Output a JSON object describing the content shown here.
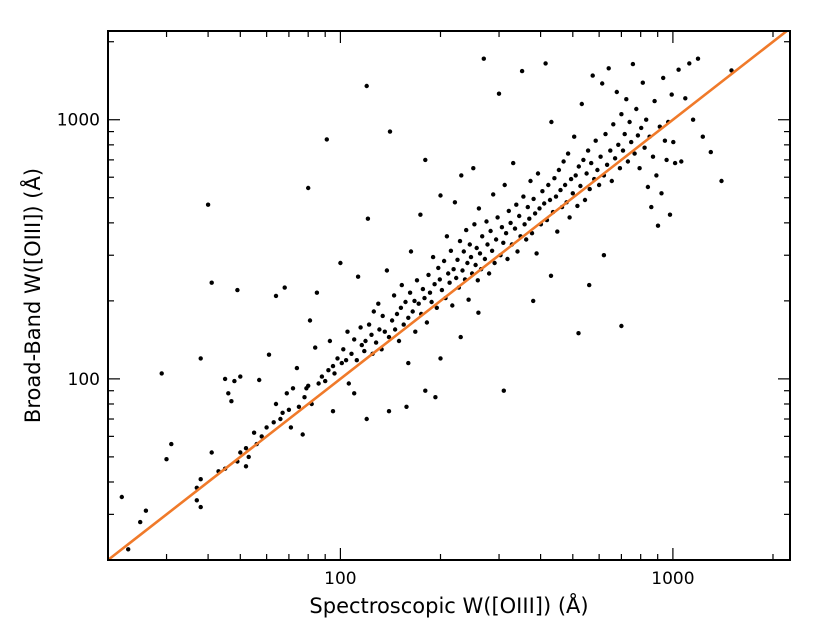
{
  "chart_data": {
    "type": "scatter",
    "title": "",
    "xlabel": "Spectroscopic W([OIII]) (Å)",
    "ylabel": "Broad-Band W([OIII]) (Å)",
    "xscale": "log",
    "yscale": "log",
    "xlim": [
      20,
      2250
    ],
    "ylim": [
      20,
      2200
    ],
    "x_ticks": [
      {
        "value": 100,
        "label": "100"
      },
      {
        "value": 1000,
        "label": "1000"
      }
    ],
    "y_ticks": [
      {
        "value": 100,
        "label": "100"
      },
      {
        "value": 1000,
        "label": "1000"
      }
    ],
    "grid": false,
    "marker_color": "#000000",
    "line_color": "#f07a2a",
    "reference_line": {
      "type": "one-to-one",
      "points": [
        [
          20,
          20
        ],
        [
          2250,
          2250
        ]
      ]
    },
    "points": [
      [
        22,
        35
      ],
      [
        23,
        22
      ],
      [
        25,
        28
      ],
      [
        26,
        31
      ],
      [
        29,
        105
      ],
      [
        30,
        49
      ],
      [
        31,
        56
      ],
      [
        37,
        38
      ],
      [
        37,
        34
      ],
      [
        38,
        32
      ],
      [
        38,
        120
      ],
      [
        38,
        41
      ],
      [
        40,
        470
      ],
      [
        41,
        52
      ],
      [
        41,
        235
      ],
      [
        43,
        44
      ],
      [
        45,
        45
      ],
      [
        45,
        100
      ],
      [
        46,
        88
      ],
      [
        47,
        82
      ],
      [
        48,
        98
      ],
      [
        49,
        48
      ],
      [
        49,
        220
      ],
      [
        50,
        52
      ],
      [
        50,
        102
      ],
      [
        52,
        54
      ],
      [
        52,
        46
      ],
      [
        53,
        50
      ],
      [
        55,
        62
      ],
      [
        56,
        56
      ],
      [
        57,
        99
      ],
      [
        58,
        60
      ],
      [
        60,
        65
      ],
      [
        61,
        124
      ],
      [
        63,
        68
      ],
      [
        64,
        209
      ],
      [
        64,
        80
      ],
      [
        66,
        70
      ],
      [
        67,
        74
      ],
      [
        68,
        225
      ],
      [
        69,
        88
      ],
      [
        70,
        76
      ],
      [
        71,
        65
      ],
      [
        72,
        92
      ],
      [
        74,
        110
      ],
      [
        75,
        78
      ],
      [
        77,
        61
      ],
      [
        78,
        85
      ],
      [
        79,
        92
      ],
      [
        80,
        94
      ],
      [
        80,
        545
      ],
      [
        81,
        168
      ],
      [
        82,
        80
      ],
      [
        84,
        132
      ],
      [
        85,
        215
      ],
      [
        86,
        96
      ],
      [
        88,
        102
      ],
      [
        90,
        98
      ],
      [
        91,
        840
      ],
      [
        92,
        108
      ],
      [
        93,
        140
      ],
      [
        95,
        112
      ],
      [
        96,
        105
      ],
      [
        98,
        120
      ],
      [
        100,
        280
      ],
      [
        101,
        115
      ],
      [
        102,
        130
      ],
      [
        104,
        118
      ],
      [
        105,
        152
      ],
      [
        106,
        96
      ],
      [
        108,
        125
      ],
      [
        110,
        142
      ],
      [
        112,
        118
      ],
      [
        113,
        248
      ],
      [
        115,
        158
      ],
      [
        116,
        135
      ],
      [
        118,
        128
      ],
      [
        119,
        140
      ],
      [
        120,
        1350
      ],
      [
        121,
        415
      ],
      [
        122,
        162
      ],
      [
        124,
        148
      ],
      [
        125,
        125
      ],
      [
        126,
        182
      ],
      [
        128,
        138
      ],
      [
        130,
        195
      ],
      [
        131,
        155
      ],
      [
        133,
        130
      ],
      [
        134,
        175
      ],
      [
        136,
        152
      ],
      [
        138,
        262
      ],
      [
        140,
        145
      ],
      [
        141,
        900
      ],
      [
        143,
        168
      ],
      [
        145,
        210
      ],
      [
        146,
        155
      ],
      [
        148,
        178
      ],
      [
        150,
        140
      ],
      [
        152,
        188
      ],
      [
        153,
        230
      ],
      [
        155,
        162
      ],
      [
        157,
        198
      ],
      [
        158,
        78
      ],
      [
        160,
        172
      ],
      [
        162,
        215
      ],
      [
        163,
        310
      ],
      [
        165,
        182
      ],
      [
        167,
        200
      ],
      [
        168,
        152
      ],
      [
        170,
        240
      ],
      [
        172,
        195
      ],
      [
        174,
        430
      ],
      [
        175,
        178
      ],
      [
        177,
        222
      ],
      [
        179,
        205
      ],
      [
        180,
        700
      ],
      [
        182,
        165
      ],
      [
        184,
        252
      ],
      [
        186,
        215
      ],
      [
        188,
        198
      ],
      [
        190,
        295
      ],
      [
        192,
        232
      ],
      [
        193,
        85
      ],
      [
        195,
        188
      ],
      [
        197,
        268
      ],
      [
        199,
        242
      ],
      [
        200,
        510
      ],
      [
        202,
        220
      ],
      [
        205,
        285
      ],
      [
        207,
        205
      ],
      [
        209,
        355
      ],
      [
        211,
        255
      ],
      [
        213,
        235
      ],
      [
        215,
        312
      ],
      [
        217,
        192
      ],
      [
        219,
        265
      ],
      [
        221,
        480
      ],
      [
        223,
        245
      ],
      [
        225,
        288
      ],
      [
        227,
        225
      ],
      [
        229,
        340
      ],
      [
        231,
        610
      ],
      [
        233,
        262
      ],
      [
        235,
        310
      ],
      [
        237,
        242
      ],
      [
        239,
        375
      ],
      [
        241,
        280
      ],
      [
        243,
        202
      ],
      [
        245,
        330
      ],
      [
        247,
        295
      ],
      [
        249,
        255
      ],
      [
        251,
        650
      ],
      [
        253,
        395
      ],
      [
        255,
        275
      ],
      [
        257,
        320
      ],
      [
        259,
        240
      ],
      [
        261,
        455
      ],
      [
        263,
        305
      ],
      [
        265,
        265
      ],
      [
        267,
        355
      ],
      [
        270,
        1720
      ],
      [
        272,
        290
      ],
      [
        275,
        405
      ],
      [
        277,
        330
      ],
      [
        280,
        255
      ],
      [
        283,
        372
      ],
      [
        286,
        312
      ],
      [
        288,
        515
      ],
      [
        291,
        280
      ],
      [
        294,
        345
      ],
      [
        297,
        420
      ],
      [
        300,
        1260
      ],
      [
        303,
        300
      ],
      [
        306,
        385
      ],
      [
        309,
        335
      ],
      [
        312,
        560
      ],
      [
        315,
        365
      ],
      [
        318,
        290
      ],
      [
        321,
        445
      ],
      [
        325,
        400
      ],
      [
        328,
        330
      ],
      [
        331,
        680
      ],
      [
        335,
        380
      ],
      [
        338,
        470
      ],
      [
        341,
        310
      ],
      [
        345,
        425
      ],
      [
        348,
        355
      ],
      [
        352,
        1540
      ],
      [
        355,
        505
      ],
      [
        358,
        395
      ],
      [
        362,
        345
      ],
      [
        366,
        460
      ],
      [
        370,
        415
      ],
      [
        373,
        580
      ],
      [
        377,
        365
      ],
      [
        381,
        495
      ],
      [
        385,
        435
      ],
      [
        389,
        305
      ],
      [
        393,
        620
      ],
      [
        397,
        455
      ],
      [
        401,
        395
      ],
      [
        405,
        530
      ],
      [
        410,
        475
      ],
      [
        414,
        1650
      ],
      [
        418,
        410
      ],
      [
        422,
        560
      ],
      [
        427,
        490
      ],
      [
        431,
        980
      ],
      [
        436,
        440
      ],
      [
        440,
        595
      ],
      [
        445,
        505
      ],
      [
        449,
        370
      ],
      [
        454,
        640
      ],
      [
        459,
        535
      ],
      [
        464,
        460
      ],
      [
        469,
        690
      ],
      [
        474,
        560
      ],
      [
        479,
        480
      ],
      [
        484,
        740
      ],
      [
        489,
        420
      ],
      [
        494,
        590
      ],
      [
        500,
        520
      ],
      [
        505,
        860
      ],
      [
        510,
        610
      ],
      [
        516,
        465
      ],
      [
        521,
        660
      ],
      [
        527,
        555
      ],
      [
        532,
        1150
      ],
      [
        538,
        700
      ],
      [
        544,
        490
      ],
      [
        550,
        620
      ],
      [
        556,
        760
      ],
      [
        562,
        540
      ],
      [
        568,
        680
      ],
      [
        574,
        1480
      ],
      [
        580,
        590
      ],
      [
        586,
        830
      ],
      [
        593,
        640
      ],
      [
        600,
        560
      ],
      [
        606,
        720
      ],
      [
        613,
        1380
      ],
      [
        620,
        610
      ],
      [
        627,
        880
      ],
      [
        634,
        670
      ],
      [
        641,
        1580
      ],
      [
        648,
        760
      ],
      [
        655,
        580
      ],
      [
        662,
        960
      ],
      [
        670,
        710
      ],
      [
        678,
        1280
      ],
      [
        685,
        800
      ],
      [
        693,
        650
      ],
      [
        700,
        1050
      ],
      [
        708,
        760
      ],
      [
        716,
        880
      ],
      [
        724,
        1200
      ],
      [
        732,
        690
      ],
      [
        741,
        980
      ],
      [
        749,
        820
      ],
      [
        758,
        1640
      ],
      [
        767,
        740
      ],
      [
        776,
        1100
      ],
      [
        785,
        870
      ],
      [
        794,
        650
      ],
      [
        803,
        930
      ],
      [
        812,
        1390
      ],
      [
        822,
        780
      ],
      [
        831,
        1000
      ],
      [
        841,
        550
      ],
      [
        851,
        860
      ],
      [
        861,
        460
      ],
      [
        871,
        720
      ],
      [
        881,
        1180
      ],
      [
        892,
        610
      ],
      [
        902,
        390
      ],
      [
        913,
        940
      ],
      [
        924,
        520
      ],
      [
        935,
        1450
      ],
      [
        946,
        830
      ],
      [
        957,
        700
      ],
      [
        968,
        980
      ],
      [
        980,
        430
      ],
      [
        992,
        1250
      ],
      [
        1003,
        820
      ],
      [
        1015,
        680
      ],
      [
        1040,
        1560
      ],
      [
        1060,
        690
      ],
      [
        1090,
        1210
      ],
      [
        1120,
        1650
      ],
      [
        1150,
        1000
      ],
      [
        1190,
        1720
      ],
      [
        1230,
        860
      ],
      [
        1300,
        750
      ],
      [
        1400,
        580
      ],
      [
        1500,
        1550
      ],
      [
        700,
        160
      ],
      [
        520,
        150
      ],
      [
        310,
        90
      ],
      [
        260,
        180
      ],
      [
        180,
        90
      ],
      [
        140,
        75
      ],
      [
        120,
        70
      ],
      [
        380,
        200
      ],
      [
        430,
        250
      ],
      [
        560,
        230
      ],
      [
        620,
        300
      ],
      [
        230,
        145
      ],
      [
        200,
        120
      ],
      [
        160,
        115
      ],
      [
        95,
        75
      ],
      [
        110,
        88
      ]
    ]
  }
}
